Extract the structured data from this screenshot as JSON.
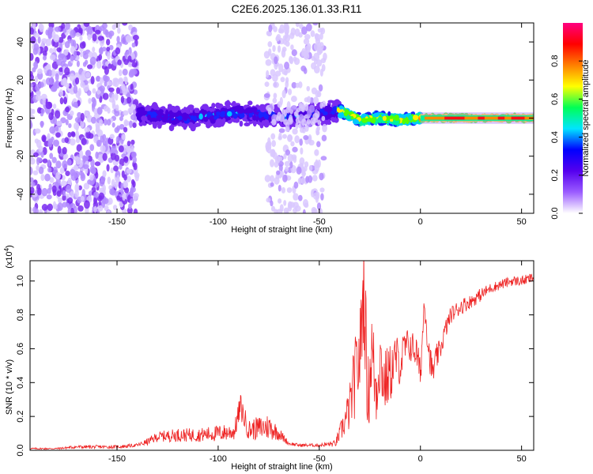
{
  "title": "C2E6.2025.136.01.33.R11",
  "chart_data": [
    {
      "type": "heatmap",
      "xlabel": "Height of straight line (km)",
      "ylabel": "Frequency (Hz)",
      "xlim": [
        -193,
        56
      ],
      "ylim": [
        -50,
        50
      ],
      "xticks": [
        -150,
        -100,
        -50,
        0,
        50
      ],
      "yticks": [
        -40,
        -20,
        0,
        20,
        40
      ],
      "colorbar": {
        "label": "Normalized spectral amplitude",
        "range": [
          0,
          1
        ],
        "ticks": [
          0.0,
          0.2,
          0.4,
          0.6,
          0.8
        ],
        "colormap": [
          "#ffffff",
          "#9b5cff",
          "#5500ee",
          "#0000ff",
          "#00e5ff",
          "#00ff55",
          "#ffff00",
          "#ff7f00",
          "#ff0000",
          "#ff0080"
        ]
      },
      "regions": [
        {
          "x": [
            -193,
            -140
          ],
          "freq_spread": [
            -50,
            50
          ],
          "amplitude": [
            0.05,
            0.25
          ]
        },
        {
          "x": [
            -140,
            -40
          ],
          "freq_center": [
            2,
            0,
            3,
            0,
            4
          ],
          "freq_width": 8,
          "amplitude": [
            0.2,
            0.45
          ]
        },
        {
          "x": [
            -76,
            -47
          ],
          "freq_spread": [
            -50,
            50
          ],
          "amplitude": [
            0.03,
            0.15
          ]
        },
        {
          "x": [
            -40,
            0
          ],
          "freq_center": [
            4,
            -1,
            0,
            -1,
            0
          ],
          "freq_width": 4,
          "amplitude": [
            0.4,
            0.9
          ]
        },
        {
          "x": [
            0,
            56
          ],
          "freq_center": [
            0,
            0
          ],
          "freq_width": 2,
          "amplitude": [
            0.7,
            0.95
          ]
        }
      ]
    },
    {
      "type": "line",
      "xlabel": "Height of straight line (km)",
      "ylabel": "SNR (10 * v/v)",
      "yscale_label": "(x10",
      "yscale_exp": "4",
      "xlim": [
        -193,
        56
      ],
      "ylim": [
        0,
        1.12
      ],
      "xticks": [
        -150,
        -100,
        -50,
        0,
        50
      ],
      "yticks": [
        0.0,
        0.2,
        0.4,
        0.6,
        0.8,
        1.0
      ],
      "color": "#ee2222",
      "x": [
        -193,
        -180,
        -170,
        -160,
        -150,
        -140,
        -135,
        -130,
        -120,
        -110,
        -100,
        -92,
        -89,
        -85,
        -80,
        -75,
        -70,
        -65,
        -60,
        -50,
        -42,
        -38,
        -35,
        -32,
        -30,
        -28,
        -26,
        -24,
        -22,
        -20,
        -18,
        -15,
        -12,
        -10,
        -8,
        -5,
        -2,
        0,
        2,
        4,
        6,
        8,
        10,
        12,
        15,
        20,
        25,
        30,
        35,
        40,
        45,
        50,
        56
      ],
      "y": [
        0.01,
        0.01,
        0.02,
        0.02,
        0.02,
        0.03,
        0.05,
        0.08,
        0.09,
        0.09,
        0.1,
        0.11,
        0.26,
        0.12,
        0.13,
        0.14,
        0.1,
        0.04,
        0.03,
        0.03,
        0.04,
        0.15,
        0.25,
        0.45,
        0.55,
        1.0,
        0.3,
        0.6,
        0.35,
        0.55,
        0.4,
        0.45,
        0.55,
        0.5,
        0.6,
        0.62,
        0.58,
        0.45,
        0.9,
        0.6,
        0.45,
        0.55,
        0.6,
        0.7,
        0.8,
        0.85,
        0.88,
        0.92,
        0.96,
        0.98,
        1.0,
        1.0,
        1.02
      ],
      "noise": [
        0.005,
        0.005,
        0.01,
        0.01,
        0.01,
        0.01,
        0.02,
        0.03,
        0.04,
        0.04,
        0.05,
        0.05,
        0.08,
        0.06,
        0.07,
        0.08,
        0.04,
        0.01,
        0.01,
        0.01,
        0.02,
        0.08,
        0.14,
        0.25,
        0.25,
        0.35,
        0.25,
        0.25,
        0.25,
        0.22,
        0.2,
        0.18,
        0.15,
        0.12,
        0.12,
        0.1,
        0.1,
        0.1,
        0.1,
        0.1,
        0.08,
        0.08,
        0.06,
        0.06,
        0.05,
        0.05,
        0.04,
        0.04,
        0.03,
        0.03,
        0.03,
        0.03,
        0.03
      ]
    }
  ]
}
